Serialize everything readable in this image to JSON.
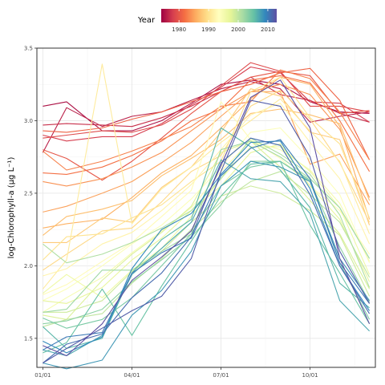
{
  "chart_data": {
    "type": "line",
    "title": "",
    "xlabel": "",
    "ylabel": "log-Chlorophyll-a (µg L⁻¹)",
    "x_ticks": [
      "01/01",
      "04/01",
      "07/01",
      "10/01"
    ],
    "x_tick_months": [
      0,
      3,
      6,
      9
    ],
    "xlim": [
      -0.2,
      11.2
    ],
    "ylim": [
      1.3,
      3.5
    ],
    "y_ticks": [
      1.5,
      2.0,
      2.5,
      3.0,
      3.5
    ],
    "y_tick_labels": [
      "1.5",
      "2.0",
      "2.5",
      "3.0",
      "3.5"
    ],
    "grid": true,
    "x_months": [
      0,
      0.8,
      2,
      3,
      4,
      5,
      6,
      7,
      8,
      9,
      10,
      11
    ],
    "legend": {
      "title": "Year",
      "position": "top",
      "ticks": [
        1980,
        1990,
        2000,
        2010
      ],
      "range": [
        1974,
        2013
      ],
      "colors": [
        "#9e0142",
        "#d53e4f",
        "#f46d43",
        "#fdae61",
        "#fee08b",
        "#ffffbf",
        "#e6f598",
        "#abdda4",
        "#66c2a5",
        "#3288bd",
        "#5e4fa2"
      ]
    },
    "series": [
      {
        "year": 1975,
        "values": [
          3.1,
          3.13,
          2.93,
          2.93,
          3.0,
          3.12,
          3.25,
          3.28,
          3.25,
          3.13,
          3.06,
          3.05
        ]
      },
      {
        "year": 1976,
        "values": [
          2.78,
          3.09,
          2.96,
          3.03,
          3.06,
          3.14,
          3.22,
          3.27,
          3.22,
          2.99,
          3.03,
          3.06
        ]
      },
      {
        "year": 1977,
        "values": [
          2.97,
          2.98,
          2.97,
          2.96,
          3.02,
          3.1,
          3.2,
          3.3,
          3.18,
          3.14,
          3.05,
          2.99
        ]
      },
      {
        "year": 1978,
        "values": [
          2.9,
          2.86,
          2.89,
          2.89,
          2.98,
          3.11,
          3.23,
          3.37,
          3.33,
          3.13,
          3.12,
          2.99
        ]
      },
      {
        "year": 1979,
        "values": [
          2.88,
          2.9,
          2.93,
          2.92,
          2.97,
          3.08,
          3.24,
          3.4,
          3.34,
          3.1,
          3.1,
          3.06
        ]
      },
      {
        "year": 1980,
        "values": [
          2.8,
          2.74,
          2.59,
          2.72,
          2.88,
          3.05,
          3.2,
          3.3,
          3.34,
          3.31,
          3.05,
          3.07
        ]
      },
      {
        "year": 1981,
        "values": [
          2.93,
          2.92,
          2.95,
          3.01,
          3.06,
          3.13,
          3.2,
          3.25,
          3.33,
          3.36,
          3.14,
          2.73
        ]
      },
      {
        "year": 1982,
        "values": [
          2.64,
          2.63,
          2.68,
          2.76,
          2.86,
          3.0,
          3.08,
          3.28,
          3.31,
          3.26,
          3.0,
          2.65
        ]
      },
      {
        "year": 1983,
        "values": [
          2.79,
          2.66,
          2.72,
          2.79,
          2.87,
          2.96,
          3.1,
          3.13,
          3.35,
          3.29,
          3.06,
          2.73
        ]
      },
      {
        "year": 1984,
        "values": [
          2.58,
          2.55,
          2.6,
          2.68,
          2.78,
          2.93,
          3.08,
          3.2,
          3.25,
          3.18,
          2.94,
          2.47
        ]
      },
      {
        "year": 1985,
        "values": [
          2.37,
          2.41,
          2.5,
          2.58,
          2.71,
          2.85,
          3.03,
          3.2,
          3.2,
          2.7,
          2.77,
          2.42
        ]
      },
      {
        "year": 1986,
        "values": [
          2.26,
          2.29,
          2.32,
          2.47,
          2.64,
          2.76,
          2.95,
          3.15,
          3.3,
          3.25,
          2.96,
          2.32
        ]
      },
      {
        "year": 1987,
        "values": [
          2.21,
          2.34,
          2.39,
          2.45,
          2.62,
          2.74,
          2.87,
          3.05,
          3.08,
          3.04,
          2.98,
          2.45
        ]
      },
      {
        "year": 1988,
        "values": [
          2.16,
          2.16,
          2.33,
          2.3,
          2.54,
          2.68,
          2.92,
          3.22,
          3.17,
          2.92,
          2.87,
          2.28
        ]
      },
      {
        "year": 1989,
        "values": [
          1.97,
          2.08,
          2.24,
          2.26,
          2.44,
          2.65,
          2.76,
          3.1,
          3.21,
          3.01,
          2.71,
          2.3
        ]
      },
      {
        "year": 1990,
        "values": [
          2.04,
          2.2,
          2.22,
          2.33,
          2.42,
          2.58,
          2.72,
          3.2,
          3.3,
          3.02,
          2.84,
          2.33
        ]
      },
      {
        "year": 1991,
        "values": [
          1.84,
          2.04,
          3.39,
          2.29,
          2.53,
          2.68,
          2.85,
          3.0,
          3.15,
          2.93,
          2.72,
          2.22
        ]
      },
      {
        "year": 1992,
        "values": [
          1.93,
          1.98,
          2.15,
          2.23,
          2.38,
          2.56,
          2.8,
          3.04,
          3.12,
          2.85,
          2.6,
          2.15
        ]
      },
      {
        "year": 1993,
        "values": [
          1.8,
          1.87,
          2.03,
          2.16,
          2.34,
          2.52,
          3.13,
          2.87,
          2.74,
          2.55,
          2.38,
          2.08
        ]
      },
      {
        "year": 1994,
        "values": [
          1.76,
          1.84,
          2.0,
          2.15,
          2.28,
          2.46,
          2.68,
          2.92,
          2.95,
          2.73,
          2.49,
          2.02
        ]
      },
      {
        "year": 1995,
        "values": [
          1.68,
          1.78,
          1.92,
          2.09,
          2.24,
          2.4,
          2.65,
          2.86,
          2.8,
          2.66,
          2.43,
          2.03
        ]
      },
      {
        "year": 1996,
        "values": [
          1.81,
          1.94,
          1.78,
          1.97,
          2.12,
          2.34,
          2.6,
          2.82,
          2.82,
          2.65,
          2.4,
          1.94
        ]
      },
      {
        "year": 1997,
        "values": [
          1.76,
          1.74,
          1.85,
          2.04,
          2.19,
          2.38,
          2.55,
          2.78,
          2.84,
          2.55,
          2.32,
          1.89
        ]
      },
      {
        "year": 1998,
        "values": [
          1.66,
          1.63,
          1.9,
          2.08,
          2.23,
          2.41,
          2.78,
          2.86,
          2.68,
          2.45,
          2.22,
          1.84
        ]
      },
      {
        "year": 1999,
        "values": [
          1.68,
          1.68,
          1.76,
          1.96,
          2.1,
          2.3,
          2.48,
          2.55,
          2.5,
          2.38,
          2.21,
          1.79
        ]
      },
      {
        "year": 2000,
        "values": [
          1.58,
          1.63,
          1.67,
          1.88,
          2.05,
          2.25,
          2.44,
          2.58,
          2.65,
          2.49,
          2.3,
          1.92
        ]
      },
      {
        "year": 2001,
        "values": [
          2.15,
          2.02,
          2.08,
          2.16,
          2.26,
          2.38,
          2.6,
          2.88,
          2.77,
          2.63,
          2.35,
          1.85
        ]
      },
      {
        "year": 2002,
        "values": [
          1.68,
          1.7,
          1.97,
          1.97,
          2.1,
          2.22,
          2.8,
          2.86,
          2.75,
          2.6,
          2.4,
          2.05
        ]
      },
      {
        "year": 2003,
        "values": [
          1.6,
          1.62,
          1.7,
          1.89,
          2.04,
          2.2,
          2.42,
          2.72,
          2.72,
          2.58,
          2.13,
          1.75
        ]
      },
      {
        "year": 2004,
        "values": [
          1.64,
          1.57,
          1.63,
          1.78,
          2.0,
          2.22,
          2.55,
          2.68,
          2.72,
          2.59,
          2.02,
          1.63
        ]
      },
      {
        "year": 2005,
        "values": [
          1.4,
          1.47,
          1.84,
          1.52,
          1.86,
          2.17,
          2.48,
          2.7,
          2.72,
          2.28,
          1.95,
          1.6
        ]
      },
      {
        "year": 2006,
        "values": [
          1.58,
          1.43,
          1.5,
          1.95,
          2.18,
          2.32,
          2.95,
          2.82,
          2.66,
          2.4,
          1.88,
          1.71
        ]
      },
      {
        "year": 2007,
        "values": [
          1.42,
          1.38,
          1.52,
          1.94,
          2.12,
          2.3,
          2.73,
          2.6,
          2.58,
          2.36,
          1.76,
          1.55
        ]
      },
      {
        "year": 2008,
        "values": [
          1.33,
          1.29,
          1.35,
          1.66,
          1.83,
          2.1,
          2.55,
          2.72,
          2.68,
          2.58,
          2.05,
          1.76
        ]
      },
      {
        "year": 2009,
        "values": [
          1.48,
          1.4,
          1.51,
          1.98,
          2.25,
          2.36,
          2.63,
          2.85,
          2.86,
          2.53,
          2.0,
          1.69
        ]
      },
      {
        "year": 2010,
        "values": [
          1.42,
          1.51,
          1.54,
          1.95,
          2.09,
          2.19,
          2.62,
          2.81,
          2.87,
          2.6,
          2.02,
          1.74
        ]
      },
      {
        "year": 2011,
        "values": [
          1.33,
          1.46,
          1.53,
          1.78,
          1.95,
          2.2,
          2.71,
          2.88,
          2.83,
          2.49,
          2.0,
          1.67
        ]
      },
      {
        "year": 2012,
        "values": [
          1.33,
          1.43,
          1.57,
          1.69,
          1.79,
          2.05,
          2.65,
          3.14,
          3.1,
          2.75,
          2.1,
          1.74
        ]
      },
      {
        "year": 2013,
        "values": [
          1.45,
          1.38,
          1.6,
          1.9,
          2.06,
          2.24,
          2.69,
          3.16,
          3.28,
          2.95,
          2.05,
          1.6
        ]
      }
    ]
  }
}
